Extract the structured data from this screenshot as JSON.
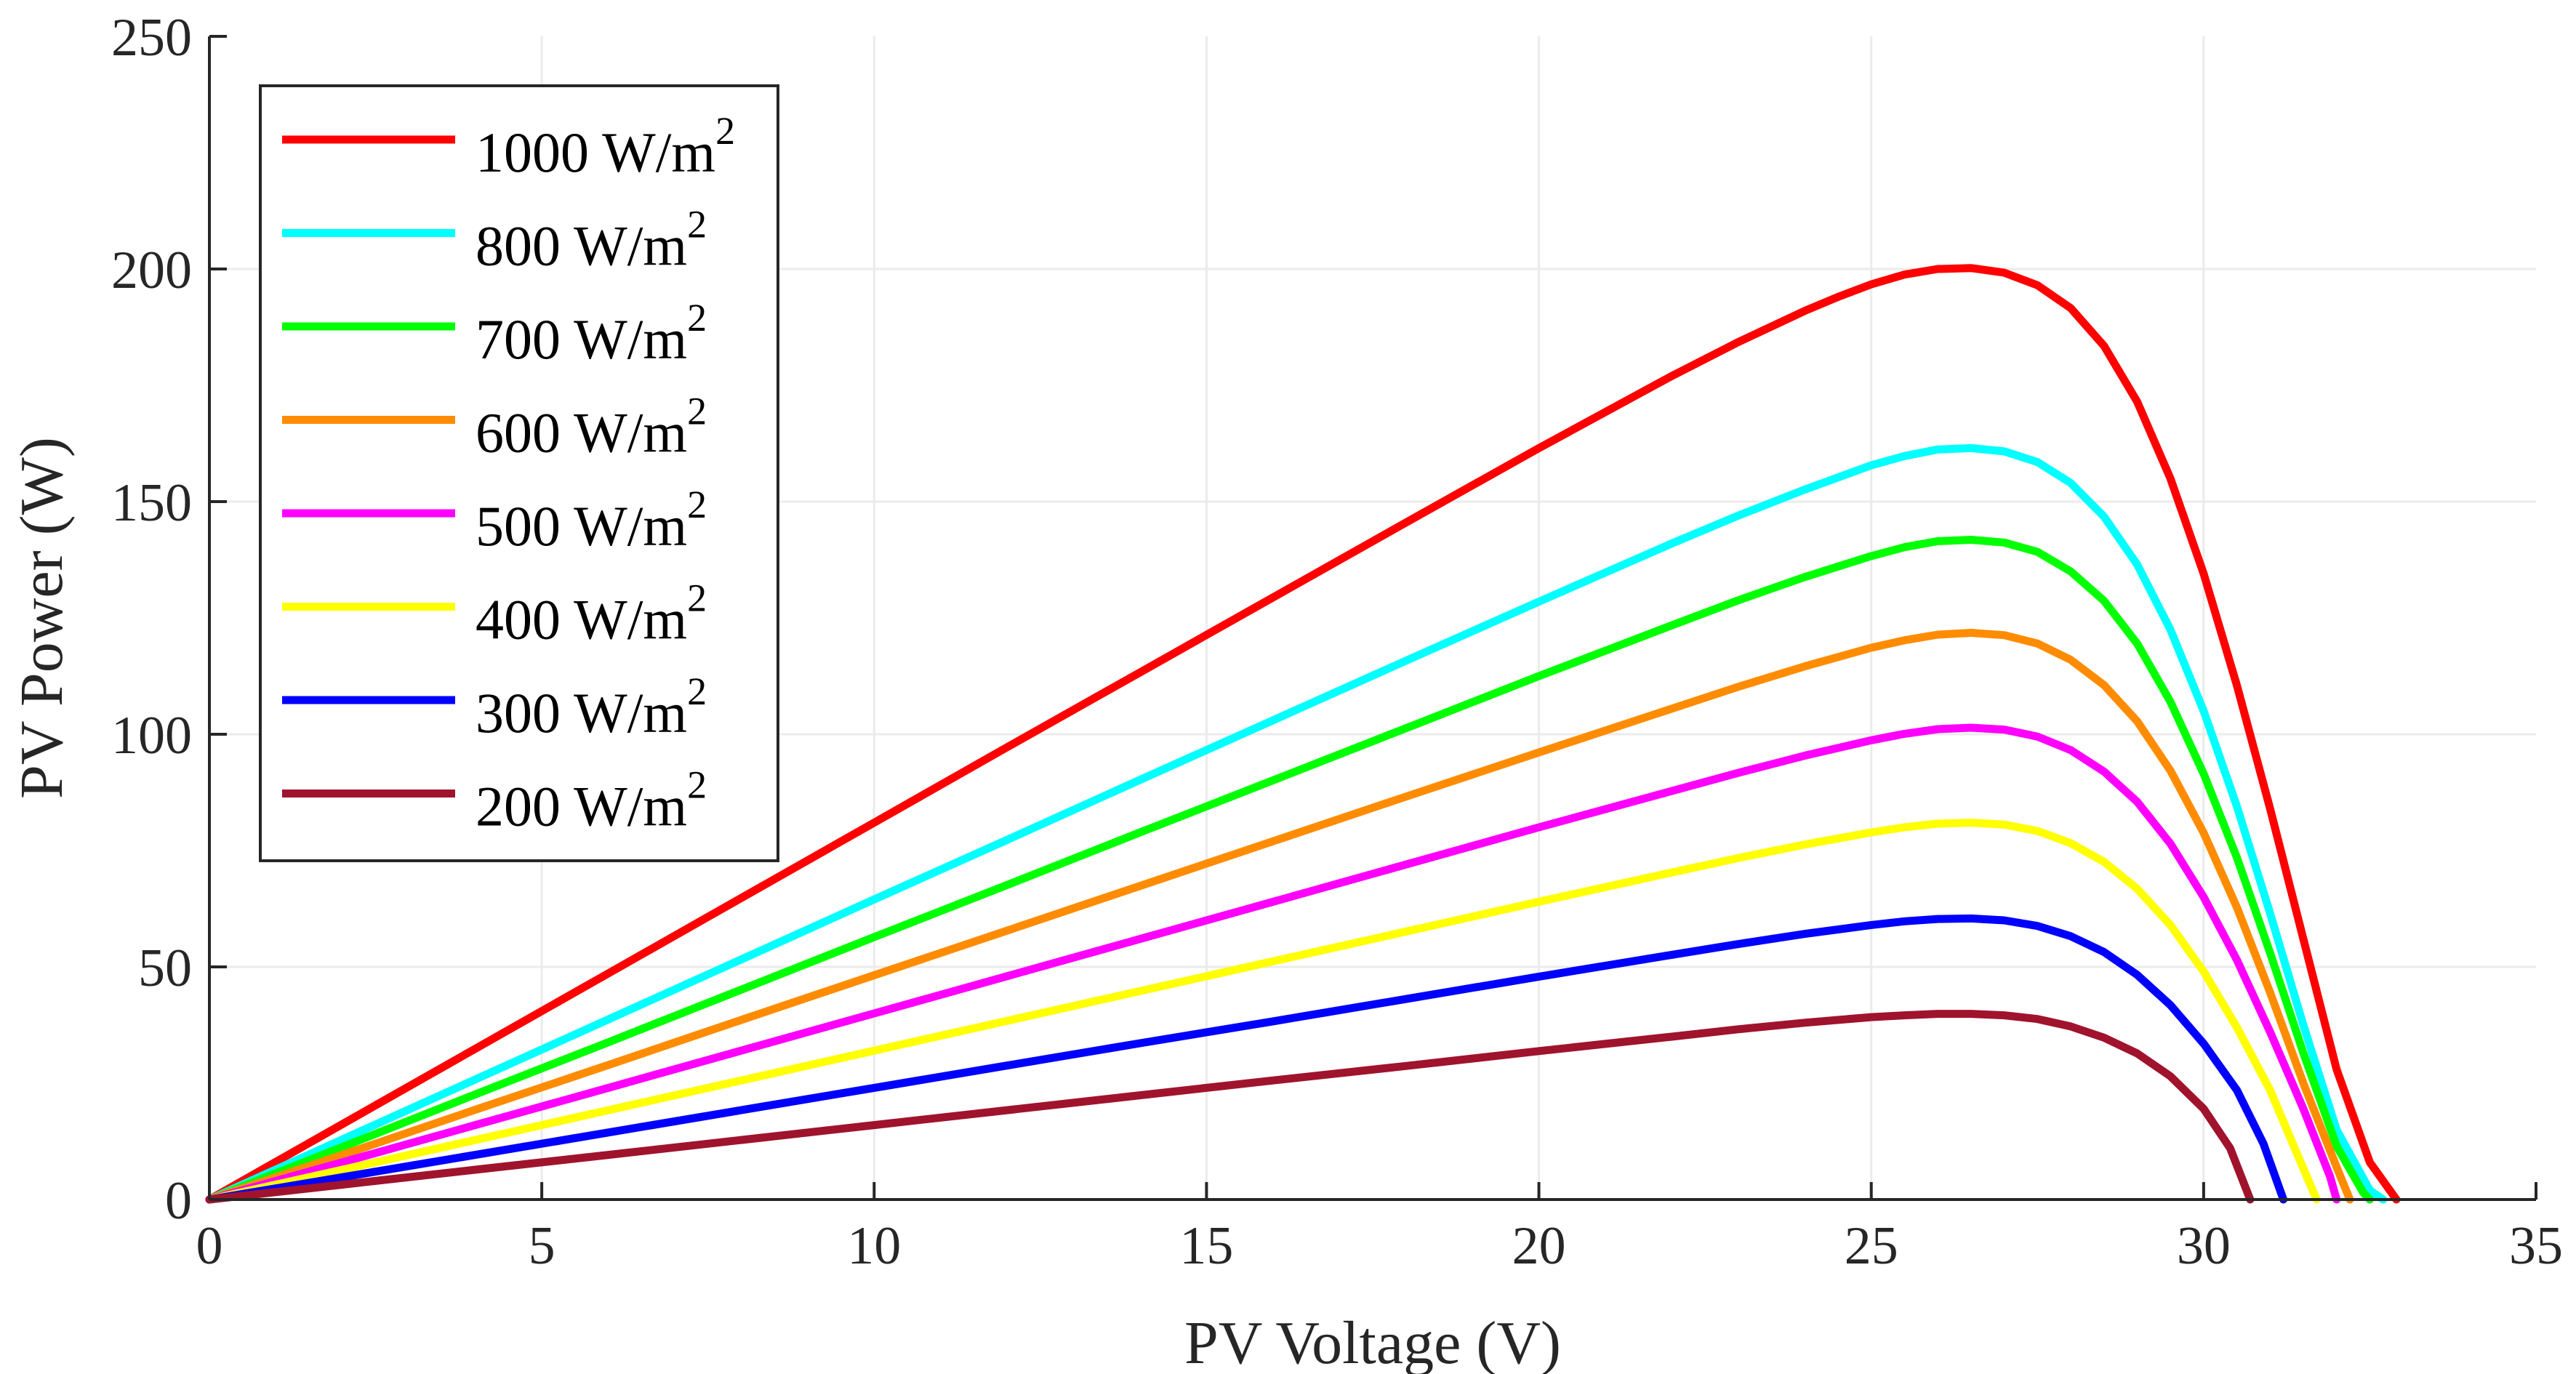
{
  "chart_data": {
    "type": "line",
    "title": "",
    "xlabel": "PV Voltage (V)",
    "ylabel": "PV Power (W)",
    "xlim": [
      0,
      35
    ],
    "ylim": [
      0,
      250
    ],
    "xticks": [
      "0",
      "5",
      "10",
      "15",
      "20",
      "25",
      "30",
      "35"
    ],
    "yticks": [
      "0",
      "50",
      "100",
      "150",
      "200",
      "250"
    ],
    "grid": true,
    "legend_position": "top-left",
    "series": [
      {
        "name": "1000 W/m",
        "sup": "2",
        "color": "#ff0000",
        "x": [
          0,
          2,
          4,
          6,
          8,
          10,
          12,
          14,
          16,
          18,
          20,
          22,
          23,
          24,
          24.5,
          25,
          25.5,
          26,
          26.5,
          27,
          27.5,
          28,
          28.5,
          29,
          29.5,
          30,
          30.5,
          31,
          31.5,
          32,
          32.5,
          32.9
        ],
        "y": [
          0,
          16.2,
          32.4,
          48.6,
          64.8,
          81,
          97.2,
          113.3,
          129.4,
          145.5,
          161.5,
          177,
          184.3,
          191,
          194,
          196.7,
          198.8,
          200,
          200.2,
          199.2,
          196.5,
          191.6,
          183.5,
          171.5,
          155,
          134.5,
          110.5,
          84,
          56,
          28,
          8,
          0
        ]
      },
      {
        "name": "800 W/m",
        "sup": "2",
        "color": "#00ffff",
        "x": [
          0,
          2,
          4,
          6,
          8,
          10,
          12,
          14,
          16,
          18,
          20,
          22,
          23,
          24,
          25,
          25.5,
          26,
          26.5,
          27,
          27.5,
          28,
          28.5,
          29,
          29.5,
          30,
          30.5,
          31,
          31.5,
          32,
          32.5,
          32.7
        ],
        "y": [
          0,
          12.9,
          25.8,
          38.7,
          51.6,
          64.5,
          77.3,
          90.2,
          103,
          115.8,
          128.5,
          141,
          147,
          152.6,
          157.8,
          159.8,
          161.2,
          161.5,
          160.8,
          158.5,
          154,
          146.8,
          136.5,
          122.5,
          105,
          84.5,
          61.5,
          37.5,
          15,
          2,
          0
        ]
      },
      {
        "name": "700 W/m",
        "sup": "2",
        "color": "#00ff00",
        "x": [
          0,
          2,
          4,
          6,
          8,
          10,
          12,
          14,
          16,
          18,
          20,
          22,
          23,
          24,
          25,
          25.5,
          26,
          26.5,
          27,
          27.5,
          28,
          28.5,
          29,
          29.5,
          30,
          30.5,
          31,
          31.5,
          32,
          32.4,
          32.5
        ],
        "y": [
          0,
          11.3,
          22.6,
          33.8,
          45.1,
          56.4,
          67.6,
          78.9,
          90.1,
          101.3,
          112.5,
          123.4,
          128.8,
          133.8,
          138.3,
          140.2,
          141.5,
          141.8,
          141.2,
          139.2,
          135,
          128.7,
          119.5,
          107,
          91.5,
          73.5,
          53,
          31.5,
          11.5,
          1.5,
          0
        ]
      },
      {
        "name": "600 W/m",
        "sup": "2",
        "color": "#ff8c00",
        "x": [
          0,
          2,
          4,
          6,
          8,
          10,
          12,
          14,
          16,
          18,
          20,
          22,
          23,
          24,
          25,
          25.5,
          26,
          26.5,
          27,
          27.5,
          28,
          28.5,
          29,
          29.5,
          30,
          30.5,
          31,
          31.5,
          32,
          32.2
        ],
        "y": [
          0,
          9.6,
          19.3,
          28.9,
          38.6,
          48.2,
          57.8,
          67.4,
          77,
          86.6,
          96.1,
          105.5,
          110.2,
          114.6,
          118.6,
          120.2,
          121.4,
          121.8,
          121.3,
          119.5,
          116,
          110.6,
          102.8,
          92.2,
          78.8,
          62.8,
          44.5,
          25,
          7,
          0
        ]
      },
      {
        "name": "500 W/m",
        "sup": "2",
        "color": "#ff00ff",
        "x": [
          0,
          2,
          4,
          6,
          8,
          10,
          12,
          14,
          16,
          18,
          20,
          22,
          23,
          24,
          25,
          25.5,
          26,
          26.5,
          27,
          27.5,
          28,
          28.5,
          29,
          29.5,
          30,
          30.5,
          31,
          31.5,
          31.9,
          32
        ],
        "y": [
          0,
          8,
          16,
          24,
          32,
          40,
          48,
          56,
          64,
          72,
          80,
          87.8,
          91.7,
          95.4,
          98.7,
          100.1,
          101.1,
          101.4,
          101,
          99.5,
          96.6,
          92,
          85.5,
          76.5,
          65,
          51.5,
          36,
          19.5,
          5,
          0
        ]
      },
      {
        "name": "400 W/m",
        "sup": "2",
        "color": "#ffff00",
        "x": [
          0,
          2,
          4,
          6,
          8,
          10,
          12,
          14,
          16,
          18,
          20,
          22,
          23,
          24,
          25,
          25.5,
          26,
          26.5,
          27,
          27.5,
          28,
          28.5,
          29,
          29.5,
          30,
          30.5,
          31,
          31.4,
          31.7
        ],
        "y": [
          0,
          6.4,
          12.8,
          19.2,
          25.6,
          32,
          38.4,
          44.8,
          51.2,
          57.6,
          64,
          70.3,
          73.4,
          76.3,
          78.9,
          80,
          80.8,
          81,
          80.6,
          79.2,
          76.6,
          72.6,
          66.8,
          59,
          49,
          37,
          23.5,
          10,
          0
        ]
      },
      {
        "name": "300 W/m",
        "sup": "2",
        "color": "#0000ff",
        "x": [
          0,
          2,
          4,
          6,
          8,
          10,
          12,
          14,
          16,
          18,
          20,
          22,
          23,
          24,
          25,
          25.5,
          26,
          26.5,
          27,
          27.5,
          28,
          28.5,
          29,
          29.5,
          30,
          30.5,
          30.9,
          31.2
        ],
        "y": [
          0,
          4.8,
          9.6,
          14.4,
          19.2,
          24,
          28.8,
          33.6,
          38.3,
          43.1,
          47.9,
          52.6,
          54.9,
          57.1,
          59,
          59.8,
          60.3,
          60.4,
          60,
          58.8,
          56.6,
          53.2,
          48.3,
          41.8,
          33.5,
          23.5,
          12,
          0
        ]
      },
      {
        "name": "200 W/m",
        "sup": "2",
        "color": "#a0132d",
        "x": [
          0,
          2,
          4,
          6,
          8,
          10,
          12,
          14,
          16,
          18,
          20,
          22,
          23,
          24,
          25,
          25.5,
          26,
          26.5,
          27,
          27.5,
          28,
          28.5,
          29,
          29.5,
          30,
          30.4,
          30.7
        ],
        "y": [
          0,
          3.2,
          6.4,
          9.6,
          12.8,
          16,
          19.2,
          22.4,
          25.6,
          28.7,
          31.9,
          35,
          36.6,
          38,
          39.2,
          39.6,
          39.9,
          39.9,
          39.6,
          38.8,
          37.2,
          34.8,
          31.4,
          26.5,
          19.5,
          11,
          0
        ]
      }
    ]
  }
}
